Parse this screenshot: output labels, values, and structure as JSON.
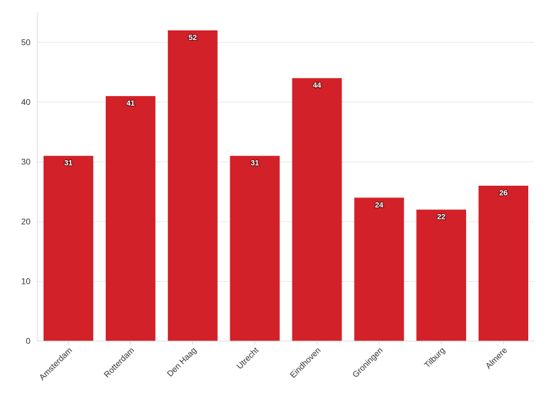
{
  "chart_data": {
    "type": "bar",
    "title": "",
    "xlabel": "",
    "ylabel": "",
    "categories": [
      "Amsterdam",
      "Rotterdam",
      "Den Haag",
      "Utrecht",
      "Eindhoven",
      "Groningen",
      "Tilburg",
      "Almere"
    ],
    "values": [
      31,
      41,
      52,
      31,
      44,
      24,
      22,
      26
    ],
    "ylim": [
      0,
      55
    ],
    "yticks": [
      0,
      10,
      20,
      30,
      40,
      50
    ],
    "grid": true,
    "legend": "none",
    "data_labels": true,
    "bar_color": "#d22128"
  }
}
